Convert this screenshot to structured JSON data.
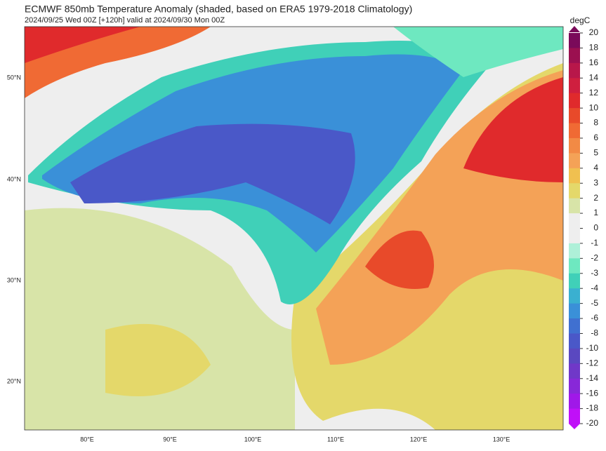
{
  "header": {
    "title": "ECMWF 850mb Temperature Anomaly (shaded, based on ERA5 1979-2018 Climatology)",
    "subtitle": "2024/09/25 Wed 00Z [+120h] valid at 2024/09/30 Mon 00Z"
  },
  "map": {
    "lat_labels": [
      "50°N",
      "40°N",
      "30°N",
      "20°N"
    ],
    "lon_labels": [
      "80°E",
      "90°E",
      "100°E",
      "110°E",
      "120°E",
      "130°E"
    ]
  },
  "colorbar": {
    "unit": "degC",
    "ticks": [
      20,
      18,
      16,
      14,
      12,
      10,
      8,
      6,
      5,
      4,
      3,
      2,
      1,
      0,
      -1,
      -2,
      -3,
      -4,
      -5,
      -6,
      -8,
      -10,
      -12,
      -14,
      -16,
      -18,
      -20
    ],
    "colors": [
      "#7a0a5a",
      "#9b1050",
      "#b8174a",
      "#cf1f3f",
      "#e02a2c",
      "#e84a2a",
      "#f06a34",
      "#f28a45",
      "#f4a257",
      "#f0c050",
      "#e4d86a",
      "#d8e4a8",
      "#eeeeee",
      "#eeeeee",
      "#aef0d8",
      "#6ee8c0",
      "#40d0b8",
      "#3ab0d0",
      "#3a90d8",
      "#4070d0",
      "#4a58c8",
      "#5a48c0",
      "#7038c8",
      "#8828d8",
      "#a018e8",
      "#c010f8"
    ]
  }
}
